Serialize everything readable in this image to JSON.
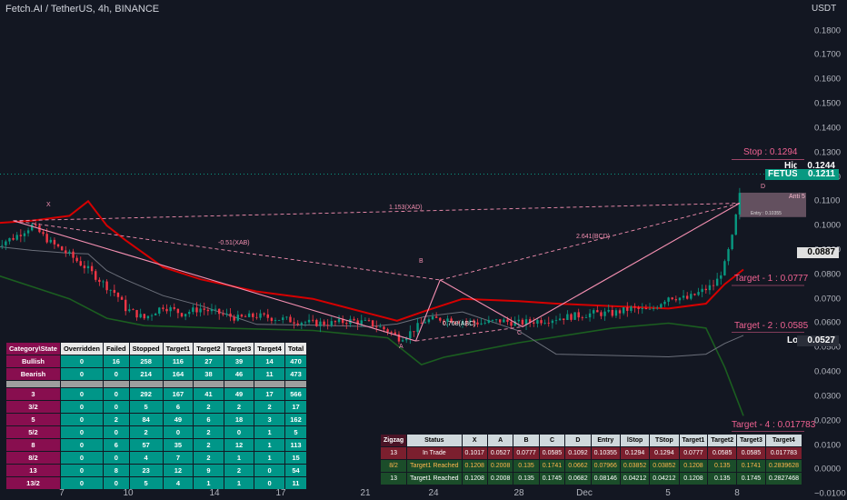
{
  "header": {
    "title": "Fetch.AI / TetherUS, 4h, BINANCE",
    "unit": "USDT"
  },
  "axis": {
    "y_ticks": [
      "0.1800",
      "0.1700",
      "0.1600",
      "0.1500",
      "0.1400",
      "0.1300",
      "0.1200",
      "0.1100",
      "0.1000",
      "0.0900",
      "0.0800",
      "0.0700",
      "0.0600",
      "0.0500",
      "0.0400",
      "0.0300",
      "0.0200",
      "0.0100",
      "0.0000",
      "−0.0100"
    ],
    "x_ticks": [
      "7",
      "10",
      "14",
      "17",
      "21",
      "24",
      "28",
      "Dec",
      "5",
      "8"
    ]
  },
  "price_tags": {
    "high": {
      "label": "High",
      "value": "0.1244"
    },
    "symbol": {
      "label": "FETUSDT",
      "value": "0.1211"
    },
    "alt": {
      "value": "0.0887"
    },
    "low": {
      "label": "Low",
      "value": "0.0527"
    }
  },
  "levels": {
    "stop": "Stop : 0.1294",
    "t1": "Target - 1 : 0.0777",
    "t2": "Target - 2 : 0.0585",
    "t4": "Target - 4 : 0.017783",
    "anti": "Anti 5",
    "entry": "Entry : 0.10355"
  },
  "pattern": {
    "points": {
      "x": "X",
      "a": "A",
      "b": "B",
      "c": "C",
      "d": "D"
    },
    "ratios": {
      "xab": "-0.51(XAB)",
      "xad": "1.153(XAD)",
      "abc": "0.768(ABC)",
      "bcd": "2.641(BCD)"
    }
  },
  "stats_table": {
    "headers": [
      "Category\\State",
      "Overridden",
      "Failed",
      "Stopped",
      "Target1",
      "Target2",
      "Target3",
      "Target4",
      "Total"
    ],
    "top": [
      {
        "cat": "Bullish",
        "vals": [
          "0",
          "16",
          "258",
          "116",
          "27",
          "39",
          "14",
          "470"
        ]
      },
      {
        "cat": "Bearish",
        "vals": [
          "0",
          "0",
          "214",
          "164",
          "38",
          "46",
          "11",
          "473"
        ]
      }
    ],
    "bottom": [
      {
        "cat": "3",
        "vals": [
          "0",
          "0",
          "292",
          "167",
          "41",
          "49",
          "17",
          "566"
        ]
      },
      {
        "cat": "3/2",
        "vals": [
          "0",
          "0",
          "5",
          "6",
          "2",
          "2",
          "2",
          "17"
        ]
      },
      {
        "cat": "5",
        "vals": [
          "0",
          "2",
          "84",
          "49",
          "6",
          "18",
          "3",
          "162"
        ]
      },
      {
        "cat": "5/2",
        "vals": [
          "0",
          "0",
          "2",
          "0",
          "2",
          "0",
          "1",
          "5"
        ]
      },
      {
        "cat": "8",
        "vals": [
          "0",
          "6",
          "57",
          "35",
          "2",
          "12",
          "1",
          "113"
        ]
      },
      {
        "cat": "8/2",
        "vals": [
          "0",
          "0",
          "4",
          "7",
          "2",
          "1",
          "1",
          "15"
        ]
      },
      {
        "cat": "13",
        "vals": [
          "0",
          "8",
          "23",
          "12",
          "9",
          "2",
          "0",
          "54"
        ]
      },
      {
        "cat": "13/2",
        "vals": [
          "0",
          "0",
          "5",
          "4",
          "1",
          "1",
          "0",
          "11"
        ]
      }
    ]
  },
  "zigzag_table": {
    "headers": [
      "Zigzag",
      "Status",
      "X",
      "A",
      "B",
      "C",
      "D",
      "Entry",
      "lStop",
      "TStop",
      "Target1",
      "Target2",
      "Target3",
      "Target4"
    ],
    "rows": [
      [
        "13",
        "In Trade",
        "0.1017",
        "0.0527",
        "0.0777",
        "0.0585",
        "0.1092",
        "0.10355",
        "0.1294",
        "0.1294",
        "0.0777",
        "0.0585",
        "0.0585",
        "0.017783"
      ],
      [
        "8/2",
        "Target1 Reached",
        "0.1208",
        "0.2008",
        "0.135",
        "0.1741",
        "0.0662",
        "0.07966",
        "0.03852",
        "0.03852",
        "0.1208",
        "0.135",
        "0.1741",
        "0.2839628"
      ],
      [
        "13",
        "Target1 Reached",
        "0.1208",
        "0.2008",
        "0.135",
        "0.1745",
        "0.0682",
        "0.08146",
        "0.04212",
        "0.04212",
        "0.1208",
        "0.135",
        "0.1745",
        "0.2827468"
      ]
    ]
  },
  "chart_data": {
    "type": "candlestick",
    "y_range": [
      -0.0125,
      0.1925
    ],
    "x_range_days": [
      "Nov 4",
      "Dec 10"
    ],
    "x_ticks": [
      "7",
      "10",
      "14",
      "17",
      "21",
      "24",
      "28",
      "Dec",
      "5",
      "8"
    ],
    "y_ticks": [
      0.18,
      0.17,
      0.16,
      0.15,
      0.14,
      0.13,
      0.12,
      0.11,
      0.1,
      0.09,
      0.08,
      0.07,
      0.06,
      0.05,
      0.04,
      0.03,
      0.02,
      0.01,
      0.0,
      -0.01
    ],
    "close_path": [
      [
        0,
        0.092
      ],
      [
        1,
        0.095
      ],
      [
        2,
        0.1
      ],
      [
        3,
        0.093
      ],
      [
        4,
        0.088
      ],
      [
        5,
        0.082
      ],
      [
        6,
        0.075
      ],
      [
        6.5,
        0.072
      ],
      [
        7,
        0.066
      ],
      [
        8,
        0.062
      ],
      [
        9,
        0.067
      ],
      [
        10,
        0.064
      ],
      [
        11,
        0.066
      ],
      [
        12,
        0.064
      ],
      [
        13,
        0.062
      ],
      [
        14,
        0.063
      ],
      [
        15,
        0.062
      ],
      [
        16,
        0.061
      ],
      [
        17,
        0.06
      ],
      [
        18,
        0.06
      ],
      [
        19,
        0.061
      ],
      [
        20,
        0.06
      ],
      [
        21,
        0.057
      ],
      [
        21.6,
        0.054
      ],
      [
        22,
        0.055
      ],
      [
        22.5,
        0.058
      ],
      [
        23,
        0.061
      ],
      [
        24,
        0.062
      ],
      [
        25,
        0.061
      ],
      [
        26,
        0.06
      ],
      [
        27,
        0.061
      ],
      [
        28,
        0.06
      ],
      [
        29,
        0.061
      ],
      [
        30,
        0.062
      ],
      [
        31,
        0.063
      ],
      [
        32,
        0.064
      ],
      [
        33,
        0.064
      ],
      [
        34,
        0.066
      ],
      [
        35,
        0.065
      ],
      [
        36,
        0.071
      ],
      [
        37,
        0.07
      ],
      [
        38,
        0.074
      ],
      [
        38.5,
        0.076
      ],
      [
        39,
        0.084
      ],
      [
        39.4,
        0.095
      ],
      [
        39.7,
        0.108
      ],
      [
        40,
        0.1211
      ]
    ],
    "channel_upper": [
      [
        0,
        0.101
      ],
      [
        2,
        0.102
      ],
      [
        4,
        0.104
      ],
      [
        5,
        0.11
      ],
      [
        6,
        0.1
      ],
      [
        7,
        0.094
      ],
      [
        9,
        0.083
      ],
      [
        11,
        0.078
      ],
      [
        14,
        0.073
      ],
      [
        17,
        0.07
      ],
      [
        20,
        0.064
      ],
      [
        21.5,
        0.061
      ],
      [
        23,
        0.065
      ],
      [
        25,
        0.07
      ],
      [
        28,
        0.069
      ],
      [
        30,
        0.068
      ],
      [
        33,
        0.067
      ],
      [
        36,
        0.066
      ],
      [
        38,
        0.068
      ],
      [
        39,
        0.076
      ],
      [
        40,
        0.082
      ]
    ],
    "channel_lower": [
      [
        0,
        0.08
      ],
      [
        2,
        0.075
      ],
      [
        4,
        0.07
      ],
      [
        6,
        0.062
      ],
      [
        8,
        0.059
      ],
      [
        12,
        0.058
      ],
      [
        17,
        0.057
      ],
      [
        21,
        0.054
      ],
      [
        22.8,
        0.043
      ],
      [
        24,
        0.046
      ],
      [
        28,
        0.052
      ],
      [
        33,
        0.058
      ],
      [
        36,
        0.06
      ],
      [
        38,
        0.058
      ],
      [
        39,
        0.042
      ],
      [
        40,
        0.022
      ]
    ],
    "pattern_points": {
      "X": [
        1,
        0.102
      ],
      "A": [
        22.5,
        0.0527
      ],
      "B": [
        23.8,
        0.0777
      ],
      "C": [
        28.2,
        0.0585
      ],
      "D": [
        39.8,
        0.1092
      ]
    },
    "levels": {
      "stop": 0.1294,
      "high": 0.1244,
      "last": 0.1211,
      "ref": 0.0887,
      "target1": 0.0777,
      "target2": 0.0585,
      "low": 0.0527,
      "target4": 0.017783
    }
  }
}
